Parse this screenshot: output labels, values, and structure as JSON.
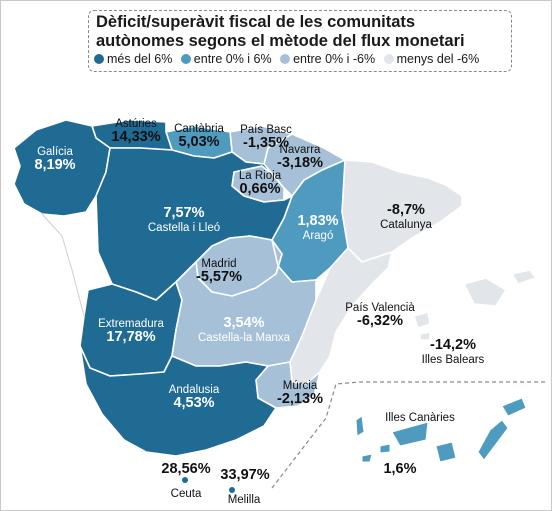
{
  "title": "Dèficit/superàvit fiscal de les comunitats autònomes segons el mètode del flux monetari",
  "legend": [
    {
      "label": "més del 6%",
      "color": "#1f6b93"
    },
    {
      "label": "entre 0% i 6%",
      "color": "#4e9bbf"
    },
    {
      "label": "entre 0% i -6%",
      "color": "#a6c0d8"
    },
    {
      "label": "menys del -6%",
      "color": "#e2e6ea"
    }
  ],
  "regions": {
    "galicia": {
      "name": "Galícia",
      "value": "8,19%"
    },
    "asturies": {
      "name": "Astúries",
      "value": "14,33%"
    },
    "cantabria": {
      "name": "Cantàbria",
      "value": "5,03%"
    },
    "pais_basc": {
      "name": "País Basc",
      "value": "-1,35%"
    },
    "navarra": {
      "name": "Navarra",
      "value": "-3,18%"
    },
    "la_rioja": {
      "name": "La Rioja",
      "value": "0,66%"
    },
    "castella_lleo": {
      "name": "Castella i Lleó",
      "value": "7,57%"
    },
    "arago": {
      "name": "Aragó",
      "value": "1,83%"
    },
    "catalunya": {
      "name": "Catalunya",
      "value": "-8,7%"
    },
    "madrid": {
      "name": "Madrid",
      "value": "-5,57%"
    },
    "extremadura": {
      "name": "Extremadura",
      "value": "17,78%"
    },
    "castella_manxa": {
      "name": "Castella-la Manxa",
      "value": "3,54%"
    },
    "pais_valencia": {
      "name": "País Valencià",
      "value": "-6,32%"
    },
    "balears": {
      "name": "Illes Balears",
      "value": "-14,2%"
    },
    "murcia": {
      "name": "Múrcia",
      "value": "-2,13%"
    },
    "andalusia": {
      "name": "Andalusia",
      "value": "4,53%"
    },
    "canaries": {
      "name": "Illes Canàries",
      "value": "1,6%"
    },
    "ceuta": {
      "name": "Ceuta",
      "value": "28,56%"
    },
    "melilla": {
      "name": "Melilla",
      "value": "33,97%"
    }
  }
}
